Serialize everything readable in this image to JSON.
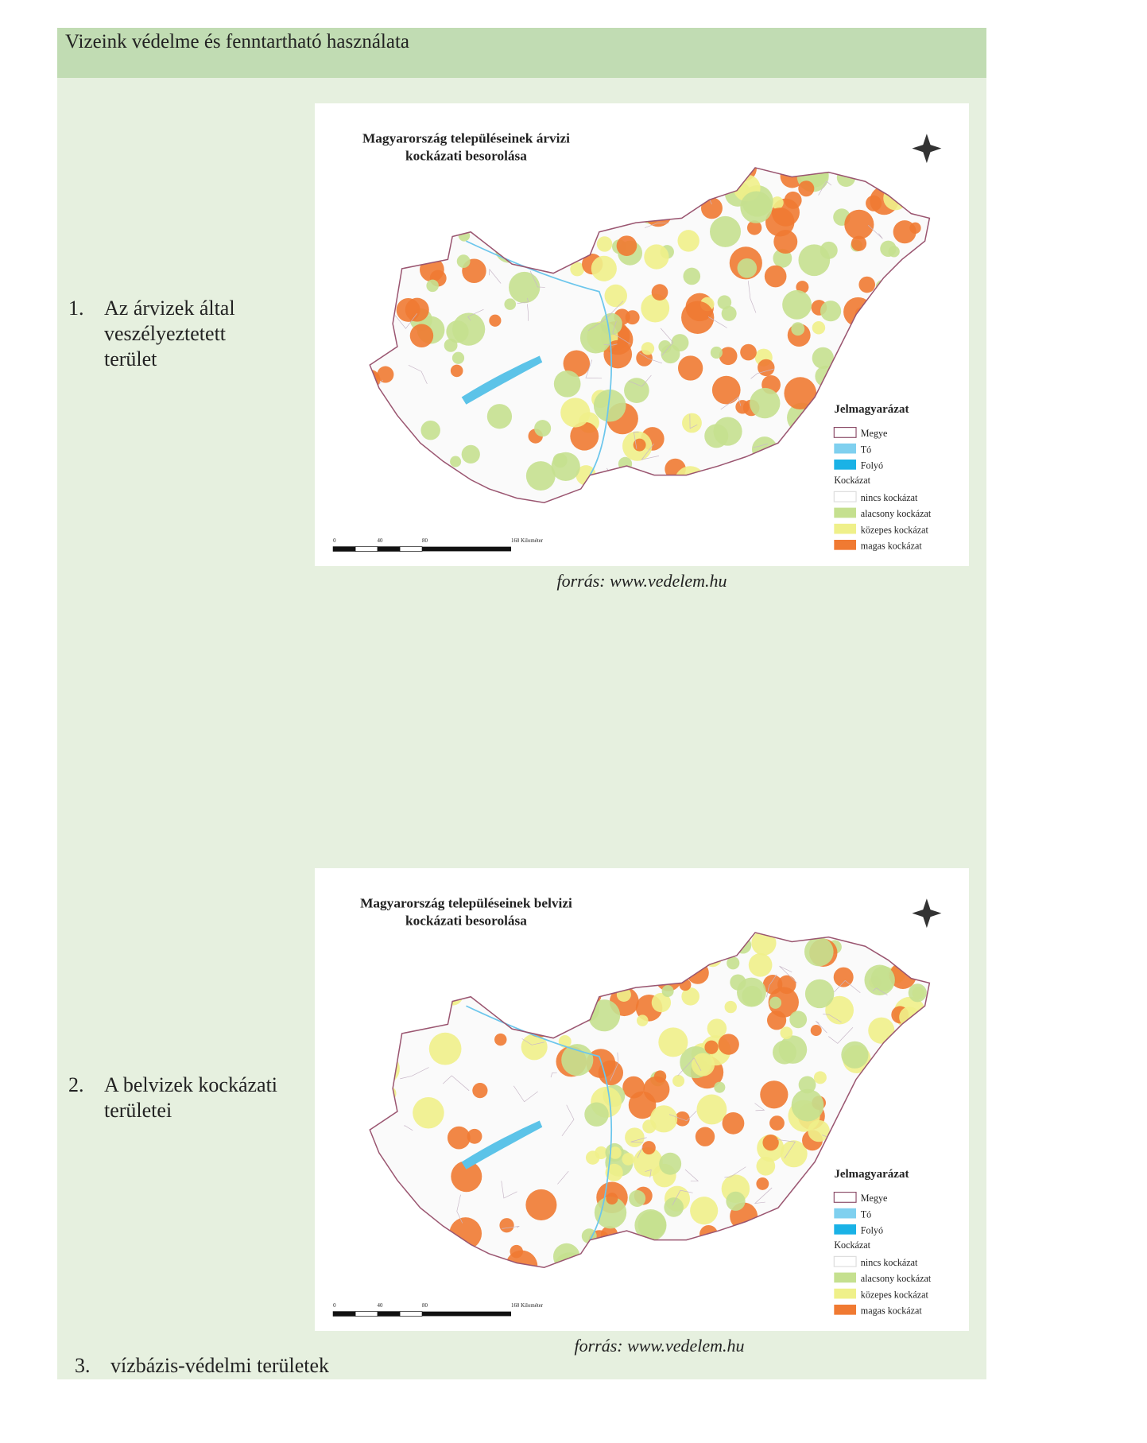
{
  "header": {
    "title": "Vizeink védelme és fenntartható használata"
  },
  "items": [
    {
      "number": "1.",
      "text": [
        "Az árvizek által",
        "veszélyeztetett",
        "terület"
      ]
    },
    {
      "number": "2.",
      "text": [
        "A belvizek kockázati",
        "területei"
      ]
    },
    {
      "number": "3.",
      "text": [
        "vízbázis-védelmi területek"
      ]
    }
  ],
  "maps": [
    {
      "title": [
        "Magyarország településeinek árvizi",
        "kockázati besorolása"
      ],
      "legend_title": "Jelmagyarázat",
      "legend": [
        "Megye",
        "Tó",
        "Folyó"
      ],
      "risk_title": "Kockázat",
      "risk": [
        "nincs kockázat",
        "alacsony kockázat",
        "közepes kockázat",
        "magas kockázat"
      ],
      "scale": [
        "0",
        "40",
        "80",
        "160 Kilométer"
      ],
      "source": "forrás: www.vedelem.hu"
    },
    {
      "title": [
        "Magyarország településeinek belvizi",
        "kockázati besorolása"
      ],
      "legend_title": "Jelmagyarázat",
      "legend": [
        "Megye",
        "Tó",
        "Folyó"
      ],
      "risk_title": "Kockázat",
      "risk": [
        "nincs kockázat",
        "alacsony kockázat",
        "közepes kockázat",
        "magas kockázat"
      ],
      "scale": [
        "0",
        "40",
        "80",
        "160 Kilométer"
      ],
      "source": "forrás: www.vedelem.hu"
    }
  ]
}
